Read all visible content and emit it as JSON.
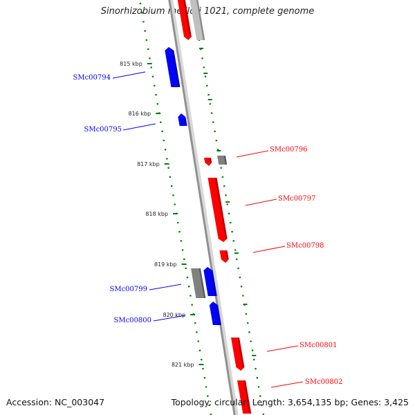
{
  "header": {
    "title": "Sinorhizobium meliloti 1021, complete genome"
  },
  "footer": {
    "accession": "Accession: NC_003047",
    "summary": "Topology: circular; Length: 3,654,135 bp; Genes: 3,425"
  },
  "colors": {
    "forward_strand": "#ff0000",
    "reverse_strand": "#0000ff",
    "other_feature": "#808080",
    "backbone": "#909090",
    "tick_marks": "#008000"
  },
  "ticks": [
    {
      "label": "815 kbp"
    },
    {
      "label": "816 kbp"
    },
    {
      "label": "817 kbp"
    },
    {
      "label": "818 kbp"
    },
    {
      "label": "819 kbp"
    },
    {
      "label": "820 kbp"
    },
    {
      "label": "821 kbp"
    }
  ],
  "genes": [
    {
      "name": "SMc00794",
      "strand": "reverse"
    },
    {
      "name": "SMc00795",
      "strand": "reverse"
    },
    {
      "name": "SMc00796",
      "strand": "forward"
    },
    {
      "name": "SMc00797",
      "strand": "forward"
    },
    {
      "name": "SMc00798",
      "strand": "forward"
    },
    {
      "name": "SMc00799",
      "strand": "reverse"
    },
    {
      "name": "SMc00800",
      "strand": "reverse"
    },
    {
      "name": "SMc00801",
      "strand": "forward"
    },
    {
      "name": "SMc00802",
      "strand": "forward"
    }
  ]
}
